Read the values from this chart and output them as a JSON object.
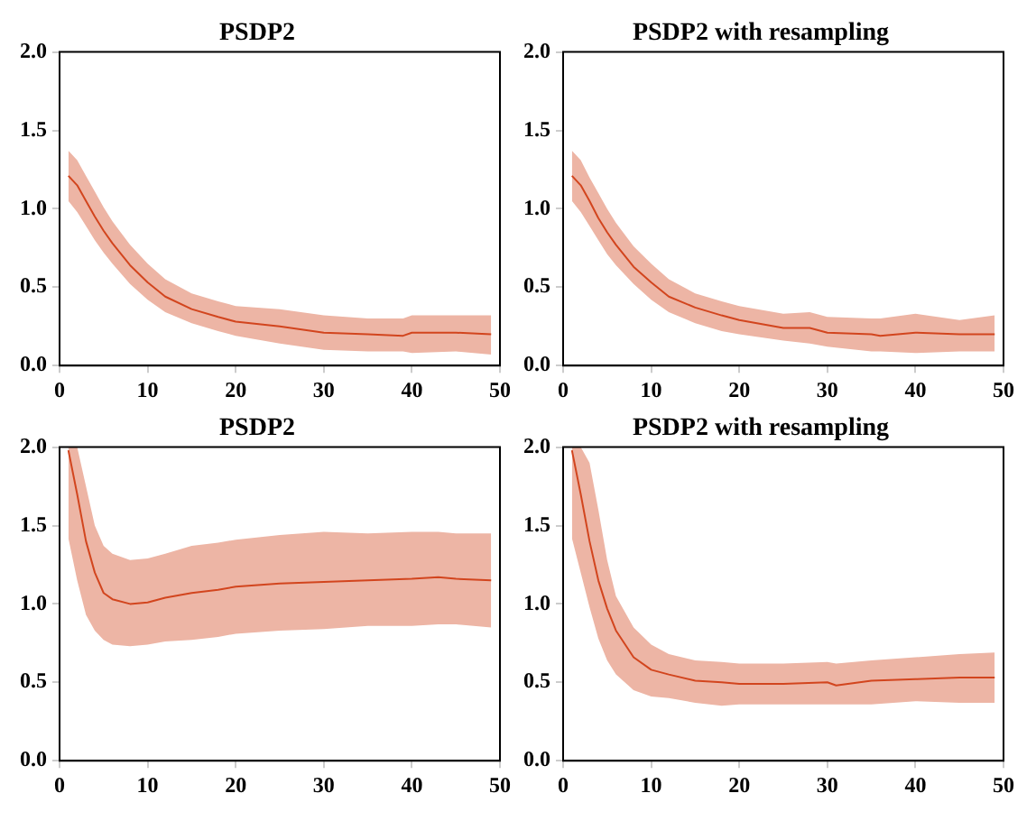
{
  "chart_data": [
    {
      "type": "line",
      "title": "PSDP2",
      "x": [
        1,
        2,
        3,
        4,
        5,
        6,
        8,
        10,
        12,
        15,
        18,
        20,
        25,
        30,
        35,
        39,
        40,
        45,
        49
      ],
      "xlim": [
        0,
        50
      ],
      "xticks": [
        0,
        10,
        20,
        30,
        40,
        50
      ],
      "ylim": [
        0,
        2
      ],
      "yticks": [
        {
          "value": 0,
          "label": "0.0"
        },
        {
          "value": 0.5,
          "label": "0.5"
        },
        {
          "value": 1,
          "label": "1.0"
        },
        {
          "value": 1.5,
          "label": "1.5"
        },
        {
          "value": 2,
          "label": "2.0"
        }
      ],
      "grid": false,
      "legend": false,
      "series": [
        {
          "color": "#d2451e",
          "values": [
            1.21,
            1.15,
            1.05,
            0.95,
            0.86,
            0.78,
            0.64,
            0.53,
            0.44,
            0.36,
            0.31,
            0.28,
            0.25,
            0.21,
            0.2,
            0.19,
            0.21,
            0.21,
            0.2
          ],
          "lower": [
            1.05,
            0.98,
            0.89,
            0.8,
            0.72,
            0.65,
            0.52,
            0.42,
            0.34,
            0.27,
            0.22,
            0.19,
            0.14,
            0.1,
            0.09,
            0.09,
            0.08,
            0.09,
            0.07
          ],
          "upper": [
            1.37,
            1.31,
            1.21,
            1.11,
            1.01,
            0.92,
            0.77,
            0.65,
            0.55,
            0.46,
            0.41,
            0.38,
            0.36,
            0.32,
            0.3,
            0.3,
            0.32,
            0.32,
            0.32
          ]
        }
      ]
    },
    {
      "type": "line",
      "title": "PSDP2 with resampling",
      "x": [
        1,
        2,
        3,
        4,
        5,
        6,
        8,
        10,
        12,
        15,
        18,
        20,
        25,
        28,
        30,
        35,
        36,
        40,
        45,
        49
      ],
      "xlim": [
        0,
        50
      ],
      "xticks": [
        0,
        10,
        20,
        30,
        40,
        50
      ],
      "ylim": [
        0,
        2
      ],
      "yticks": [
        {
          "value": 0,
          "label": "0.0"
        },
        {
          "value": 0.5,
          "label": "0.5"
        },
        {
          "value": 1,
          "label": "1.0"
        },
        {
          "value": 1.5,
          "label": "1.5"
        },
        {
          "value": 2,
          "label": "2.0"
        }
      ],
      "grid": false,
      "legend": false,
      "series": [
        {
          "color": "#d2451e",
          "values": [
            1.21,
            1.15,
            1.05,
            0.94,
            0.85,
            0.77,
            0.63,
            0.53,
            0.44,
            0.37,
            0.32,
            0.29,
            0.24,
            0.24,
            0.21,
            0.2,
            0.19,
            0.21,
            0.2,
            0.2
          ],
          "lower": [
            1.05,
            0.98,
            0.89,
            0.8,
            0.71,
            0.64,
            0.52,
            0.42,
            0.34,
            0.27,
            0.22,
            0.2,
            0.16,
            0.14,
            0.12,
            0.09,
            0.09,
            0.08,
            0.09,
            0.09
          ],
          "upper": [
            1.37,
            1.31,
            1.2,
            1.1,
            1.0,
            0.91,
            0.76,
            0.65,
            0.55,
            0.46,
            0.41,
            0.38,
            0.33,
            0.34,
            0.31,
            0.3,
            0.3,
            0.33,
            0.29,
            0.32
          ]
        }
      ]
    },
    {
      "type": "line",
      "title": "PSDP2",
      "x": [
        1,
        2,
        3,
        4,
        5,
        6,
        8,
        10,
        12,
        15,
        18,
        20,
        25,
        30,
        35,
        40,
        43,
        45,
        49
      ],
      "xlim": [
        0,
        50
      ],
      "xticks": [
        0,
        10,
        20,
        30,
        40,
        50
      ],
      "ylim": [
        0,
        2
      ],
      "yticks": [
        {
          "value": 0,
          "label": "0.0"
        },
        {
          "value": 0.5,
          "label": "0.5"
        },
        {
          "value": 1,
          "label": "1.0"
        },
        {
          "value": 1.5,
          "label": "1.5"
        },
        {
          "value": 2,
          "label": "2.0"
        }
      ],
      "grid": false,
      "legend": false,
      "series": [
        {
          "color": "#d2451e",
          "values": [
            1.98,
            1.7,
            1.4,
            1.2,
            1.07,
            1.03,
            1.0,
            1.01,
            1.04,
            1.07,
            1.09,
            1.11,
            1.13,
            1.14,
            1.15,
            1.16,
            1.17,
            1.16,
            1.15
          ],
          "lower": [
            1.42,
            1.15,
            0.93,
            0.83,
            0.77,
            0.74,
            0.73,
            0.74,
            0.76,
            0.77,
            0.79,
            0.81,
            0.83,
            0.84,
            0.86,
            0.86,
            0.87,
            0.87,
            0.85
          ],
          "upper": [
            2.0,
            2.0,
            1.75,
            1.5,
            1.37,
            1.32,
            1.28,
            1.29,
            1.32,
            1.37,
            1.39,
            1.41,
            1.44,
            1.46,
            1.45,
            1.46,
            1.46,
            1.45,
            1.45
          ]
        }
      ]
    },
    {
      "type": "line",
      "title": "PSDP2 with resampling",
      "x": [
        1,
        2,
        3,
        4,
        5,
        6,
        8,
        10,
        12,
        15,
        18,
        20,
        25,
        30,
        31,
        35,
        40,
        45,
        49
      ],
      "xlim": [
        0,
        50
      ],
      "xticks": [
        0,
        10,
        20,
        30,
        40,
        50
      ],
      "ylim": [
        0,
        2
      ],
      "yticks": [
        {
          "value": 0,
          "label": "0.0"
        },
        {
          "value": 0.5,
          "label": "0.5"
        },
        {
          "value": 1,
          "label": "1.0"
        },
        {
          "value": 1.5,
          "label": "1.5"
        },
        {
          "value": 2,
          "label": "2.0"
        }
      ],
      "grid": false,
      "legend": false,
      "series": [
        {
          "color": "#d2451e",
          "values": [
            1.98,
            1.7,
            1.4,
            1.15,
            0.97,
            0.83,
            0.66,
            0.58,
            0.55,
            0.51,
            0.5,
            0.49,
            0.49,
            0.5,
            0.48,
            0.51,
            0.52,
            0.53,
            0.53
          ],
          "lower": [
            1.42,
            1.2,
            0.98,
            0.78,
            0.64,
            0.55,
            0.45,
            0.41,
            0.4,
            0.37,
            0.35,
            0.36,
            0.36,
            0.36,
            0.36,
            0.36,
            0.38,
            0.37,
            0.37
          ],
          "upper": [
            2.0,
            2.0,
            1.9,
            1.6,
            1.28,
            1.05,
            0.85,
            0.74,
            0.68,
            0.64,
            0.63,
            0.62,
            0.62,
            0.63,
            0.62,
            0.64,
            0.66,
            0.68,
            0.69
          ]
        }
      ]
    }
  ]
}
